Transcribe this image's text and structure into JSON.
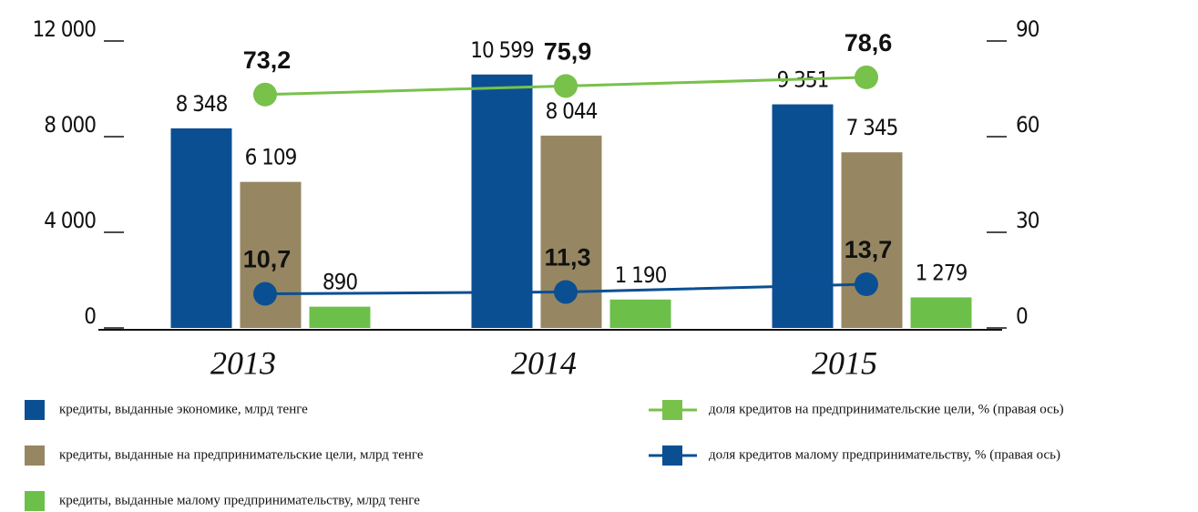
{
  "chart_data": {
    "type": "bar",
    "categories": [
      "2013",
      "2014",
      "2015"
    ],
    "ylim": [
      0,
      12000
    ],
    "yticks": [
      {
        "value": 0,
        "label": "0"
      },
      {
        "value": 4000,
        "label": "4 000"
      },
      {
        "value": 8000,
        "label": "8 000"
      },
      {
        "value": 12000,
        "label": "12 000"
      }
    ],
    "y2lim": [
      0,
      90
    ],
    "y2ticks": [
      0,
      30,
      60,
      90
    ],
    "series": [
      {
        "name": "кредиты, выданные экономике, млрд тенге",
        "type": "bar",
        "color": "#0b4f93",
        "values": [
          8348,
          10599,
          9351
        ],
        "value_labels": [
          "8 348",
          "10 599",
          "9 351"
        ]
      },
      {
        "name": "кредиты, выданные на предпринимательские цели, млрд тенге",
        "type": "bar",
        "color": "#968762",
        "values": [
          6109,
          8044,
          7345
        ],
        "value_labels": [
          "6 109",
          "8 044",
          "7 345"
        ]
      },
      {
        "name": "кредиты, выданные малому предпринимательству, млрд тенге",
        "type": "bar",
        "color": "#6cc04a",
        "values": [
          890,
          1190,
          1279
        ],
        "value_labels": [
          "890",
          "1 190",
          "1 279"
        ]
      },
      {
        "name": "доля кредитов на предпринимательские цели, % (правая ось)",
        "type": "line",
        "axis": "y2",
        "color": "#78c14a",
        "values": [
          73.2,
          75.9,
          78.6
        ],
        "value_labels": [
          "73,2",
          "75,9",
          "78,6"
        ]
      },
      {
        "name": "доля кредитов малому предпринимательству, % (правая ось)",
        "type": "line",
        "axis": "y2",
        "color": "#0b4f93",
        "values": [
          10.7,
          11.3,
          13.7
        ],
        "value_labels": [
          "10,7",
          "11,3",
          "13,7"
        ]
      }
    ]
  }
}
